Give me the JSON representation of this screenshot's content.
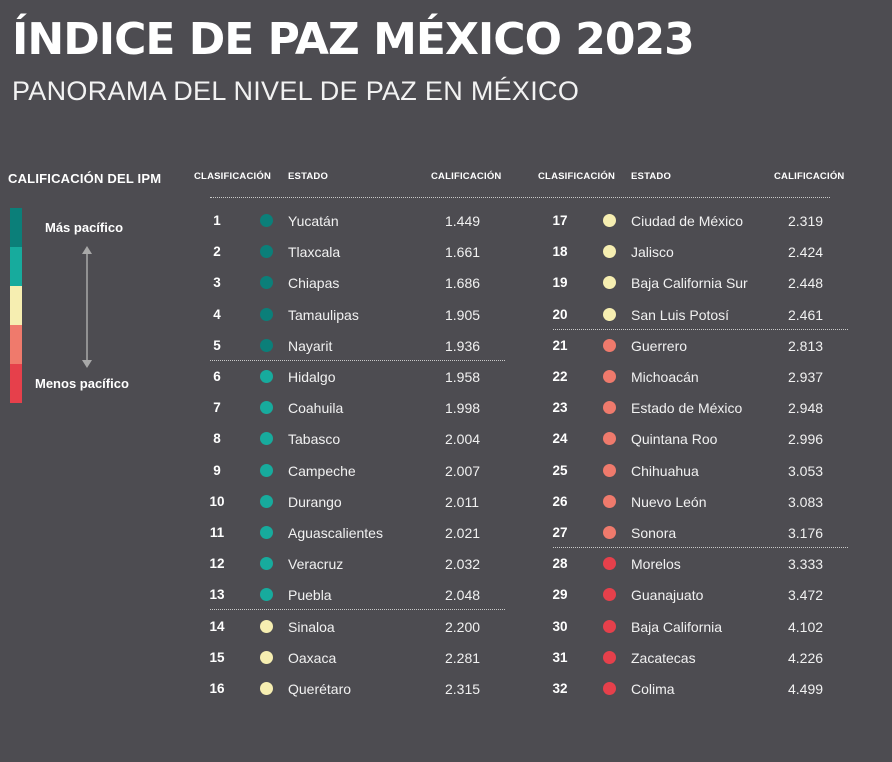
{
  "title": "ÍNDICE DE PAZ MÉXICO 2023",
  "subtitle": "PANORAMA DEL NIVEL DE PAZ EN MÉXICO",
  "legend": {
    "title": "CALIFICACIÓN DEL IPM",
    "top_label": "Más pacífico",
    "bottom_label": "Menos pacífico",
    "colors": [
      "#0b7f79",
      "#17ab9d",
      "#f6eeb1",
      "#ef7a6c",
      "#e6404b"
    ]
  },
  "headers": {
    "rank": "CLASIFICACIÓN",
    "state": "ESTADO",
    "score": "CALIFICACIÓN"
  },
  "chart_data": {
    "type": "table",
    "title": "ÍNDICE DE PAZ MÉXICO 2023",
    "columns": [
      "CLASIFICACIÓN",
      "ESTADO",
      "CALIFICACIÓN"
    ],
    "rows": [
      {
        "rank": "1",
        "state": "Yucatán",
        "score": "1.449",
        "color": "#0b7f79"
      },
      {
        "rank": "2",
        "state": "Tlaxcala",
        "score": "1.661",
        "color": "#0b7f79"
      },
      {
        "rank": "3",
        "state": "Chiapas",
        "score": "1.686",
        "color": "#0b7f79"
      },
      {
        "rank": "4",
        "state": "Tamaulipas",
        "score": "1.905",
        "color": "#0b7f79"
      },
      {
        "rank": "5",
        "state": "Nayarit",
        "score": "1.936",
        "color": "#0b7f79"
      },
      {
        "rank": "6",
        "state": "Hidalgo",
        "score": "1.958",
        "color": "#17ab9d"
      },
      {
        "rank": "7",
        "state": "Coahuila",
        "score": "1.998",
        "color": "#17ab9d"
      },
      {
        "rank": "8",
        "state": "Tabasco",
        "score": "2.004",
        "color": "#17ab9d"
      },
      {
        "rank": "9",
        "state": "Campeche",
        "score": "2.007",
        "color": "#17ab9d"
      },
      {
        "rank": "10",
        "state": "Durango",
        "score": "2.011",
        "color": "#17ab9d"
      },
      {
        "rank": "11",
        "state": "Aguascalientes",
        "score": "2.021",
        "color": "#17ab9d"
      },
      {
        "rank": "12",
        "state": "Veracruz",
        "score": "2.032",
        "color": "#17ab9d"
      },
      {
        "rank": "13",
        "state": "Puebla",
        "score": "2.048",
        "color": "#17ab9d"
      },
      {
        "rank": "14",
        "state": "Sinaloa",
        "score": "2.200",
        "color": "#f6eeb1"
      },
      {
        "rank": "15",
        "state": "Oaxaca",
        "score": "2.281",
        "color": "#f6eeb1"
      },
      {
        "rank": "16",
        "state": "Querétaro",
        "score": "2.315",
        "color": "#f6eeb1"
      },
      {
        "rank": "17",
        "state": "Ciudad de México",
        "score": "2.319",
        "color": "#f6eeb1"
      },
      {
        "rank": "18",
        "state": "Jalisco",
        "score": "2.424",
        "color": "#f6eeb1"
      },
      {
        "rank": "19",
        "state": "Baja California Sur",
        "score": "2.448",
        "color": "#f6eeb1"
      },
      {
        "rank": "20",
        "state": "San Luis Potosí",
        "score": "2.461",
        "color": "#f6eeb1"
      },
      {
        "rank": "21",
        "state": "Guerrero",
        "score": "2.813",
        "color": "#ef7a6c"
      },
      {
        "rank": "22",
        "state": "Michoacán",
        "score": "2.937",
        "color": "#ef7a6c"
      },
      {
        "rank": "23",
        "state": "Estado de México",
        "score": "2.948",
        "color": "#ef7a6c"
      },
      {
        "rank": "24",
        "state": "Quintana Roo",
        "score": "2.996",
        "color": "#ef7a6c"
      },
      {
        "rank": "25",
        "state": "Chihuahua",
        "score": "3.053",
        "color": "#ef7a6c"
      },
      {
        "rank": "26",
        "state": "Nuevo León",
        "score": "3.083",
        "color": "#ef7a6c"
      },
      {
        "rank": "27",
        "state": "Sonora",
        "score": "3.176",
        "color": "#ef7a6c"
      },
      {
        "rank": "28",
        "state": "Morelos",
        "score": "3.333",
        "color": "#e6404b"
      },
      {
        "rank": "29",
        "state": "Guanajuato",
        "score": "3.472",
        "color": "#e6404b"
      },
      {
        "rank": "30",
        "state": "Baja California",
        "score": "4.102",
        "color": "#e6404b"
      },
      {
        "rank": "31",
        "state": "Zacatecas",
        "score": "4.226",
        "color": "#e6404b"
      },
      {
        "rank": "32",
        "state": "Colima",
        "score": "4.499",
        "color": "#e6404b"
      }
    ]
  }
}
